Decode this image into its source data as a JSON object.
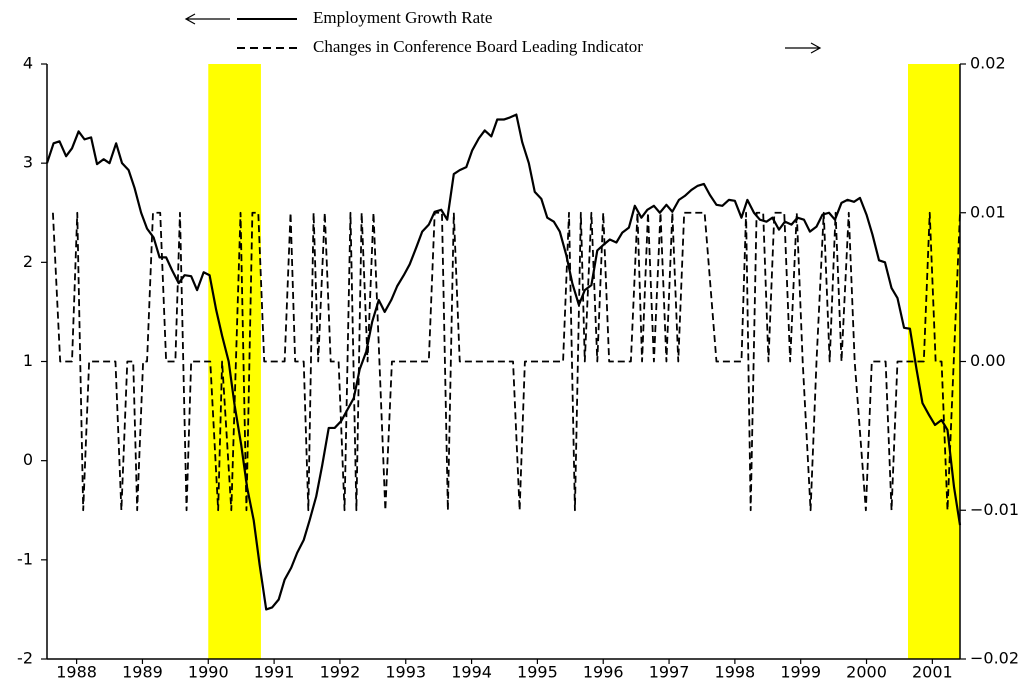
{
  "chart_data": {
    "type": "line",
    "xlim": [
      1988.05,
      2001.92
    ],
    "ylim": [
      -2,
      4
    ],
    "y2lim": [
      -0.02,
      0.02
    ],
    "yticks": [
      -2,
      -1,
      0,
      1,
      2,
      3,
      4
    ],
    "y2ticks": [
      {
        "value": -0.02,
        "label": "−0.02"
      },
      {
        "value": -0.01,
        "label": "−0.01"
      },
      {
        "value": 0,
        "label": "0.00"
      },
      {
        "value": 0.01,
        "label": "0.01"
      },
      {
        "value": 0.02,
        "label": "0.02"
      }
    ],
    "xticks": [
      {
        "value": 1988.5,
        "label": "1988"
      },
      {
        "value": 1989.5,
        "label": "1989"
      },
      {
        "value": 1990.5,
        "label": "1990"
      },
      {
        "value": 1991.5,
        "label": "1991"
      },
      {
        "value": 1992.5,
        "label": "1992"
      },
      {
        "value": 1993.5,
        "label": "1993"
      },
      {
        "value": 1994.5,
        "label": "1994"
      },
      {
        "value": 1995.5,
        "label": "1995"
      },
      {
        "value": 1996.5,
        "label": "1996"
      },
      {
        "value": 1997.5,
        "label": "1997"
      },
      {
        "value": 1998.5,
        "label": "1998"
      },
      {
        "value": 1999.5,
        "label": "1999"
      },
      {
        "value": 2000.5,
        "label": "2000"
      },
      {
        "value": 2001.5,
        "label": "2001"
      }
    ],
    "shading": [
      [
        1990.5,
        1991.3
      ],
      [
        2001.13,
        2001.92
      ]
    ],
    "shading_color": "#ffff00",
    "grid": false,
    "series": [
      {
        "name": "Employment Growth Rate",
        "color": "#000000",
        "style": "solid",
        "axis": "y",
        "x": [
          1988.05,
          1988.15,
          1988.24,
          1988.34,
          1988.43,
          1988.53,
          1988.62,
          1988.72,
          1988.81,
          1988.91,
          1989.0,
          1989.1,
          1989.19,
          1989.29,
          1989.38,
          1989.48,
          1989.57,
          1989.67,
          1989.76,
          1989.86,
          1989.95,
          1990.05,
          1990.14,
          1990.24,
          1990.33,
          1990.43,
          1990.52,
          1990.62,
          1990.71,
          1990.81,
          1990.9,
          1991.0,
          1991.09,
          1991.19,
          1991.28,
          1991.38,
          1991.47,
          1991.57,
          1991.66,
          1991.76,
          1991.85,
          1991.95,
          1992.04,
          1992.14,
          1992.23,
          1992.33,
          1992.42,
          1992.52,
          1992.61,
          1992.71,
          1992.8,
          1992.9,
          1992.99,
          1993.09,
          1993.18,
          1993.28,
          1993.37,
          1993.47,
          1993.56,
          1993.66,
          1993.75,
          1993.85,
          1993.94,
          1994.04,
          1994.13,
          1994.23,
          1994.32,
          1994.42,
          1994.51,
          1994.61,
          1994.7,
          1994.8,
          1994.89,
          1994.99,
          1995.08,
          1995.18,
          1995.27,
          1995.37,
          1995.46,
          1995.56,
          1995.65,
          1995.75,
          1995.84,
          1995.94,
          1996.03,
          1996.13,
          1996.22,
          1996.32,
          1996.41,
          1996.51,
          1996.6,
          1996.7,
          1996.79,
          1996.89,
          1996.98,
          1997.08,
          1997.17,
          1997.27,
          1997.36,
          1997.46,
          1997.55,
          1997.65,
          1997.74,
          1997.84,
          1997.93,
          1998.03,
          1998.12,
          1998.22,
          1998.31,
          1998.41,
          1998.5,
          1998.6,
          1998.69,
          1998.79,
          1998.88,
          1998.98,
          1999.07,
          1999.17,
          1999.26,
          1999.36,
          1999.45,
          1999.55,
          1999.64,
          1999.74,
          1999.83,
          1999.93,
          2000.02,
          2000.12,
          2000.21,
          2000.31,
          2000.4,
          2000.5,
          2000.59,
          2000.69,
          2000.78,
          2000.88,
          2000.97,
          2001.07,
          2001.16,
          2001.26,
          2001.35,
          2001.45,
          2001.54,
          2001.64,
          2001.73,
          2001.83,
          2001.92
        ],
        "values": [
          3.0,
          3.2,
          3.22,
          3.07,
          3.15,
          3.32,
          3.24,
          3.26,
          2.99,
          3.04,
          3.0,
          3.2,
          3.0,
          2.93,
          2.75,
          2.5,
          2.34,
          2.25,
          2.05,
          2.05,
          1.92,
          1.79,
          1.87,
          1.86,
          1.72,
          1.9,
          1.87,
          1.52,
          1.26,
          1.0,
          0.56,
          0.16,
          -0.27,
          -0.6,
          -1.05,
          -1.5,
          -1.48,
          -1.4,
          -1.2,
          -1.08,
          -0.93,
          -0.8,
          -0.6,
          -0.36,
          -0.05,
          0.33,
          0.33,
          0.4,
          0.51,
          0.63,
          0.92,
          1.1,
          1.4,
          1.62,
          1.5,
          1.62,
          1.76,
          1.87,
          1.98,
          2.15,
          2.31,
          2.38,
          2.51,
          2.53,
          2.43,
          2.89,
          2.93,
          2.96,
          3.13,
          3.25,
          3.33,
          3.27,
          3.44,
          3.44,
          3.46,
          3.49,
          3.21,
          3.0,
          2.71,
          2.64,
          2.45,
          2.41,
          2.31,
          2.07,
          1.79,
          1.57,
          1.72,
          1.77,
          2.12,
          2.18,
          2.23,
          2.2,
          2.3,
          2.35,
          2.57,
          2.45,
          2.53,
          2.57,
          2.5,
          2.58,
          2.51,
          2.63,
          2.67,
          2.73,
          2.77,
          2.79,
          2.68,
          2.58,
          2.57,
          2.63,
          2.62,
          2.45,
          2.63,
          2.5,
          2.43,
          2.41,
          2.45,
          2.33,
          2.41,
          2.38,
          2.45,
          2.43,
          2.31,
          2.36,
          2.48,
          2.5,
          2.43,
          2.6,
          2.63,
          2.61,
          2.65,
          2.48,
          2.28,
          2.02,
          2.0,
          1.74,
          1.64,
          1.34,
          1.33,
          0.92,
          0.58,
          0.46,
          0.36,
          0.41,
          0.31,
          -0.27,
          -0.65
        ]
      },
      {
        "name": "Changes in Conference Board Leading Indicator",
        "color": "#000000",
        "style": "dashed",
        "axis": "y2",
        "x": [
          1988.14,
          1988.25,
          1988.43,
          1988.51,
          1988.6,
          1988.69,
          1989.09,
          1989.18,
          1989.27,
          1989.36,
          1989.42,
          1989.51,
          1989.57,
          1989.66,
          1989.77,
          1989.86,
          1990.0,
          1990.07,
          1990.17,
          1990.24,
          1990.53,
          1990.65,
          1990.71,
          1990.85,
          1990.99,
          1991.08,
          1991.17,
          1991.26,
          1991.35,
          1991.66,
          1991.75,
          1991.82,
          1991.95,
          1992.02,
          1992.1,
          1992.17,
          1992.27,
          1992.36,
          1992.48,
          1992.57,
          1992.66,
          1992.75,
          1992.83,
          1992.92,
          1993.01,
          1993.1,
          1993.19,
          1993.29,
          1993.85,
          1993.94,
          1994.05,
          1994.14,
          1994.23,
          1994.32,
          1995.13,
          1995.23,
          1995.31,
          1995.89,
          1995.98,
          1996.07,
          1996.16,
          1996.22,
          1996.32,
          1996.41,
          1996.5,
          1996.59,
          1996.92,
          1997.02,
          1997.09,
          1997.18,
          1997.27,
          1997.37,
          1997.46,
          1997.55,
          1997.64,
          1997.73,
          1998.04,
          1998.22,
          1998.6,
          1998.67,
          1998.74,
          1998.83,
          1998.93,
          1999.01,
          1999.1,
          1999.25,
          1999.34,
          1999.44,
          1999.53,
          1999.65,
          1999.74,
          1999.85,
          1999.94,
          2000.03,
          2000.12,
          2000.23,
          2000.32,
          2000.49,
          2000.58,
          2000.79,
          2000.88,
          2000.97,
          2001.37,
          2001.46,
          2001.55,
          2001.64,
          2001.73,
          2001.92
        ],
        "values": [
          0.01,
          0,
          0,
          0.01,
          -0.01,
          0,
          0,
          -0.01,
          0,
          0,
          -0.01,
          0,
          0,
          0.01,
          0.01,
          0,
          0,
          0.01,
          -0.01,
          0,
          0,
          -0.01,
          0,
          -0.01,
          0.01,
          -0.01,
          0.01,
          0.01,
          0,
          0,
          0.01,
          0,
          0,
          -0.01,
          0.01,
          0,
          0.01,
          0,
          0,
          -0.01,
          0.01,
          -0.01,
          0.01,
          0,
          0.01,
          0,
          -0.01,
          0,
          0,
          0.01,
          0.01,
          -0.01,
          0.01,
          0,
          0,
          -0.01,
          0,
          0,
          0.01,
          -0.01,
          0.01,
          0,
          0.01,
          0,
          0.01,
          0,
          0,
          0.01,
          0,
          0.01,
          0,
          0.01,
          0,
          0.01,
          0,
          0.01,
          0.01,
          0,
          0,
          0.01,
          -0.01,
          0.01,
          0.01,
          0,
          0.01,
          0.01,
          0,
          0.01,
          0,
          -0.01,
          0,
          0.01,
          0,
          0.01,
          0,
          0.01,
          0,
          -0.01,
          0,
          0,
          -0.01,
          0,
          0,
          0.01,
          0,
          0,
          -0.01,
          0.01
        ]
      }
    ]
  }
}
